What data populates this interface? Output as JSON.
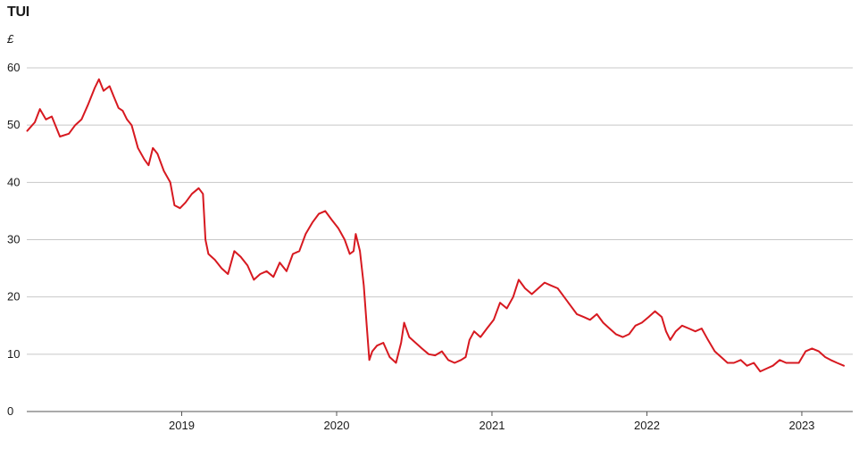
{
  "chart_data": {
    "type": "line",
    "title": "TUI",
    "unit": "£",
    "xlabel": "",
    "ylabel": "",
    "ylim": [
      0,
      60
    ],
    "yticks": [
      0,
      10,
      20,
      30,
      40,
      50,
      60
    ],
    "xlim": [
      "2018-01-01",
      "2023-05-01"
    ],
    "xticks": [
      {
        "label": "2019",
        "date": "2019-01-01"
      },
      {
        "label": "2020",
        "date": "2020-01-01"
      },
      {
        "label": "2021",
        "date": "2021-01-01"
      },
      {
        "label": "2022",
        "date": "2022-01-01"
      },
      {
        "label": "2023",
        "date": "2023-01-01"
      }
    ],
    "grid": true,
    "legend": "none",
    "series": [
      {
        "color": "#d71920",
        "points": [
          [
            "2018-01-02",
            49.0
          ],
          [
            "2018-01-20",
            50.5
          ],
          [
            "2018-02-01",
            52.8
          ],
          [
            "2018-02-15",
            51.0
          ],
          [
            "2018-03-01",
            51.5
          ],
          [
            "2018-03-20",
            48.0
          ],
          [
            "2018-04-10",
            48.5
          ],
          [
            "2018-04-25",
            50.0
          ],
          [
            "2018-05-10",
            51.0
          ],
          [
            "2018-05-25",
            53.5
          ],
          [
            "2018-06-10",
            56.5
          ],
          [
            "2018-06-20",
            58.0
          ],
          [
            "2018-07-01",
            56.0
          ],
          [
            "2018-07-15",
            56.8
          ],
          [
            "2018-07-25",
            55.0
          ],
          [
            "2018-08-05",
            53.0
          ],
          [
            "2018-08-15",
            52.5
          ],
          [
            "2018-08-25",
            51.0
          ],
          [
            "2018-09-05",
            50.0
          ],
          [
            "2018-09-20",
            46.0
          ],
          [
            "2018-10-05",
            44.0
          ],
          [
            "2018-10-15",
            43.0
          ],
          [
            "2018-10-25",
            46.0
          ],
          [
            "2018-11-05",
            45.0
          ],
          [
            "2018-11-20",
            42.0
          ],
          [
            "2018-12-05",
            40.0
          ],
          [
            "2018-12-15",
            36.0
          ],
          [
            "2018-12-28",
            35.5
          ],
          [
            "2019-01-10",
            36.5
          ],
          [
            "2019-01-25",
            38.0
          ],
          [
            "2019-02-10",
            39.0
          ],
          [
            "2019-02-20",
            38.0
          ],
          [
            "2019-02-26",
            30.0
          ],
          [
            "2019-03-05",
            27.5
          ],
          [
            "2019-03-20",
            26.5
          ],
          [
            "2019-04-05",
            25.0
          ],
          [
            "2019-04-20",
            24.0
          ],
          [
            "2019-05-05",
            28.0
          ],
          [
            "2019-05-20",
            27.0
          ],
          [
            "2019-06-05",
            25.5
          ],
          [
            "2019-06-20",
            23.0
          ],
          [
            "2019-07-05",
            24.0
          ],
          [
            "2019-07-20",
            24.5
          ],
          [
            "2019-08-05",
            23.5
          ],
          [
            "2019-08-20",
            26.0
          ],
          [
            "2019-09-05",
            24.5
          ],
          [
            "2019-09-20",
            27.5
          ],
          [
            "2019-10-05",
            28.0
          ],
          [
            "2019-10-20",
            31.0
          ],
          [
            "2019-11-05",
            33.0
          ],
          [
            "2019-11-20",
            34.5
          ],
          [
            "2019-12-05",
            35.0
          ],
          [
            "2019-12-20",
            33.5
          ],
          [
            "2020-01-05",
            32.0
          ],
          [
            "2020-01-20",
            30.0
          ],
          [
            "2020-02-01",
            27.5
          ],
          [
            "2020-02-10",
            28.0
          ],
          [
            "2020-02-15",
            31.0
          ],
          [
            "2020-02-25",
            28.0
          ],
          [
            "2020-03-05",
            22.0
          ],
          [
            "2020-03-12",
            15.0
          ],
          [
            "2020-03-18",
            9.0
          ],
          [
            "2020-03-25",
            10.5
          ],
          [
            "2020-04-05",
            11.5
          ],
          [
            "2020-04-20",
            12.0
          ],
          [
            "2020-05-05",
            9.5
          ],
          [
            "2020-05-20",
            8.5
          ],
          [
            "2020-06-01",
            12.0
          ],
          [
            "2020-06-08",
            15.5
          ],
          [
            "2020-06-20",
            13.0
          ],
          [
            "2020-07-05",
            12.0
          ],
          [
            "2020-07-20",
            11.0
          ],
          [
            "2020-08-05",
            10.0
          ],
          [
            "2020-08-20",
            9.8
          ],
          [
            "2020-09-05",
            10.5
          ],
          [
            "2020-09-20",
            9.0
          ],
          [
            "2020-10-05",
            8.5
          ],
          [
            "2020-10-20",
            9.0
          ],
          [
            "2020-10-31",
            9.5
          ],
          [
            "2020-11-09",
            12.5
          ],
          [
            "2020-11-20",
            14.0
          ],
          [
            "2020-12-05",
            13.0
          ],
          [
            "2020-12-20",
            14.5
          ],
          [
            "2021-01-05",
            16.0
          ],
          [
            "2021-01-20",
            19.0
          ],
          [
            "2021-02-05",
            18.0
          ],
          [
            "2021-02-20",
            20.0
          ],
          [
            "2021-03-05",
            23.0
          ],
          [
            "2021-03-20",
            21.5
          ],
          [
            "2021-04-05",
            20.5
          ],
          [
            "2021-04-20",
            21.5
          ],
          [
            "2021-05-05",
            22.5
          ],
          [
            "2021-05-20",
            22.0
          ],
          [
            "2021-06-05",
            21.5
          ],
          [
            "2021-06-20",
            20.0
          ],
          [
            "2021-07-05",
            18.5
          ],
          [
            "2021-07-20",
            17.0
          ],
          [
            "2021-08-05",
            16.5
          ],
          [
            "2021-08-20",
            16.0
          ],
          [
            "2021-09-05",
            17.0
          ],
          [
            "2021-09-20",
            15.5
          ],
          [
            "2021-10-05",
            14.5
          ],
          [
            "2021-10-20",
            13.5
          ],
          [
            "2021-11-05",
            13.0
          ],
          [
            "2021-11-20",
            13.5
          ],
          [
            "2021-12-05",
            15.0
          ],
          [
            "2021-12-20",
            15.5
          ],
          [
            "2022-01-05",
            16.5
          ],
          [
            "2022-01-20",
            17.5
          ],
          [
            "2022-02-05",
            16.5
          ],
          [
            "2022-02-15",
            14.0
          ],
          [
            "2022-02-25",
            12.5
          ],
          [
            "2022-03-10",
            14.0
          ],
          [
            "2022-03-25",
            15.0
          ],
          [
            "2022-04-10",
            14.5
          ],
          [
            "2022-04-25",
            14.0
          ],
          [
            "2022-05-10",
            14.5
          ],
          [
            "2022-05-25",
            12.5
          ],
          [
            "2022-06-10",
            10.5
          ],
          [
            "2022-06-25",
            9.5
          ],
          [
            "2022-07-10",
            8.5
          ],
          [
            "2022-07-25",
            8.5
          ],
          [
            "2022-08-10",
            9.0
          ],
          [
            "2022-08-25",
            8.0
          ],
          [
            "2022-09-10",
            8.5
          ],
          [
            "2022-09-25",
            7.0
          ],
          [
            "2022-10-10",
            7.5
          ],
          [
            "2022-10-25",
            8.0
          ],
          [
            "2022-11-10",
            9.0
          ],
          [
            "2022-11-25",
            8.5
          ],
          [
            "2022-12-10",
            8.5
          ],
          [
            "2022-12-25",
            8.5
          ],
          [
            "2023-01-10",
            10.5
          ],
          [
            "2023-01-25",
            11.0
          ],
          [
            "2023-02-10",
            10.5
          ],
          [
            "2023-02-25",
            9.5
          ],
          [
            "2023-03-10",
            9.0
          ],
          [
            "2023-03-25",
            8.5
          ],
          [
            "2023-04-10",
            8.0
          ]
        ]
      }
    ]
  }
}
